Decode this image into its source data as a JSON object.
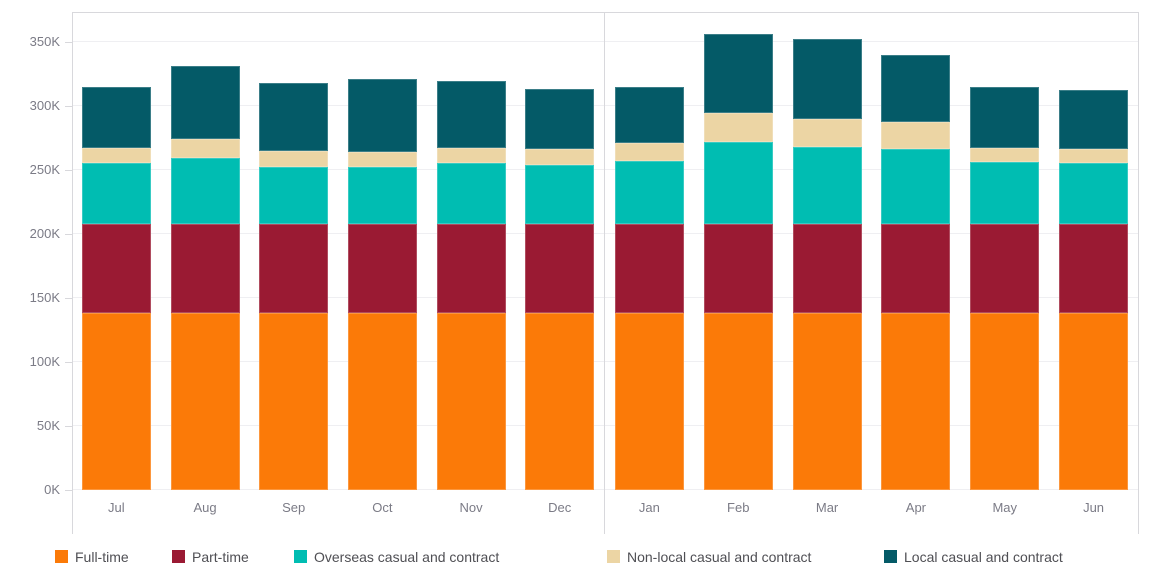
{
  "chart_data": {
    "type": "bar",
    "stacked": true,
    "title": "",
    "xlabel": "",
    "ylabel": "",
    "value_unit": "thousands (K)",
    "grid": true,
    "legend_position": "bottom",
    "ylim": [
      0,
      373
    ],
    "yticks": {
      "labels": [
        "0K",
        "50K",
        "100K",
        "150K",
        "200K",
        "250K",
        "300K",
        "350K"
      ],
      "values": [
        0,
        50,
        100,
        150,
        200,
        250,
        300,
        350
      ]
    },
    "categories": [
      "Jul",
      "Aug",
      "Sep",
      "Oct",
      "Nov",
      "Dec",
      "Jan",
      "Feb",
      "Mar",
      "Apr",
      "May",
      "Jun"
    ],
    "panel_split_index": 6,
    "series": [
      {
        "name": "Full-time",
        "color": "#fb7a08",
        "values": [
          138,
          138,
          138,
          138,
          138,
          138,
          138,
          138,
          138,
          138,
          138,
          138
        ]
      },
      {
        "name": "Part-time",
        "color": "#9a1a33",
        "values": [
          70,
          70,
          70,
          70,
          70,
          70,
          70,
          70,
          70,
          70,
          70,
          70
        ]
      },
      {
        "name": "Overseas casual and contract",
        "color": "#00bdb2",
        "values": [
          47,
          51,
          44,
          44,
          47,
          46,
          49,
          64,
          60,
          58,
          48,
          47
        ]
      },
      {
        "name": "Non-local casual and contract",
        "color": "#ecd5a4",
        "values": [
          12,
          15,
          13,
          12,
          12,
          12,
          14,
          22,
          22,
          21,
          11,
          11
        ]
      },
      {
        "name": "Local casual and contract",
        "color": "#045a67",
        "values": [
          48,
          57,
          53,
          57,
          52,
          47,
          44,
          62,
          62,
          53,
          48,
          46
        ]
      }
    ],
    "totals": [
      315,
      331,
      318,
      321,
      319,
      313,
      315,
      356,
      352,
      340,
      315,
      312
    ]
  },
  "style": {
    "grid_color": "#efeff2",
    "border_color": "#d8d8dc",
    "axis_text_color": "#7b7b86",
    "legend_text_color": "#4f4f54",
    "background": "#ffffff"
  }
}
